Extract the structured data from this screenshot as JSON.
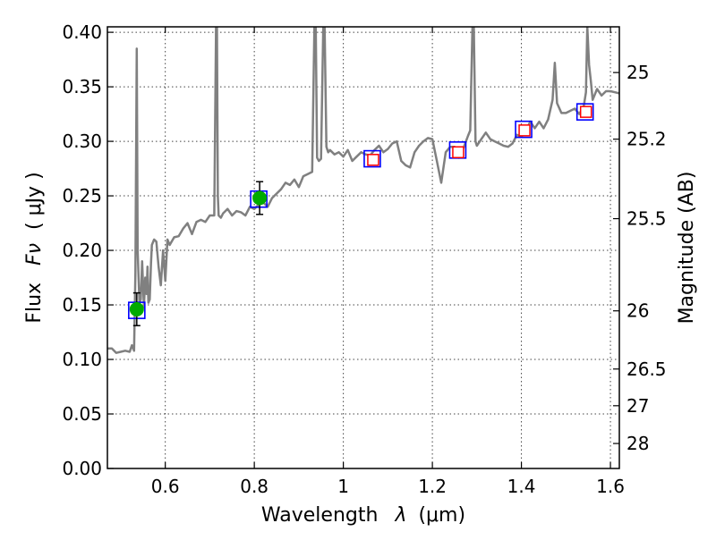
{
  "chart_data": {
    "type": "line",
    "title": "",
    "xlabel": "Wavelength",
    "xlabel_symbol": "λ",
    "xlabel_unit": "(μm)",
    "ylabel": "Flux",
    "ylabel_symbol": "Fν",
    "ylabel_unit": "( μJy )",
    "y2label": "Magnitude (AB)",
    "xlim": [
      0.47,
      1.62
    ],
    "ylim": [
      0.0,
      0.405
    ],
    "grid": true,
    "legend": "none",
    "x_ticks": [
      {
        "value": 0.6,
        "label": "0.6"
      },
      {
        "value": 0.8,
        "label": "0.8"
      },
      {
        "value": 1.0,
        "label": "1"
      },
      {
        "value": 1.2,
        "label": "1.2"
      },
      {
        "value": 1.4,
        "label": "1.4"
      },
      {
        "value": 1.6,
        "label": "1.6"
      }
    ],
    "y_ticks": [
      {
        "value": 0.0,
        "label": "0.00"
      },
      {
        "value": 0.05,
        "label": "0.05"
      },
      {
        "value": 0.1,
        "label": "0.10"
      },
      {
        "value": 0.15,
        "label": "0.15"
      },
      {
        "value": 0.2,
        "label": "0.20"
      },
      {
        "value": 0.25,
        "label": "0.25"
      },
      {
        "value": 0.3,
        "label": "0.30"
      },
      {
        "value": 0.35,
        "label": "0.35"
      },
      {
        "value": 0.4,
        "label": "0.40"
      }
    ],
    "y2_ticks": [
      {
        "mag": 25,
        "label": "25"
      },
      {
        "mag": 25.2,
        "label": "25.2"
      },
      {
        "mag": 25.5,
        "label": "25.5"
      },
      {
        "mag": 26,
        "label": "26"
      },
      {
        "mag": 26.5,
        "label": "26.5"
      },
      {
        "mag": 27,
        "label": "27"
      },
      {
        "mag": 28,
        "label": "28"
      }
    ],
    "series": [
      {
        "kind": "spectrum",
        "color": "#808080",
        "x": [
          0.47,
          0.48,
          0.49,
          0.5,
          0.51,
          0.52,
          0.525,
          0.53,
          0.533,
          0.536,
          0.538,
          0.542,
          0.545,
          0.548,
          0.552,
          0.555,
          0.558,
          0.56,
          0.562,
          0.565,
          0.568,
          0.57,
          0.575,
          0.58,
          0.585,
          0.59,
          0.595,
          0.6,
          0.605,
          0.61,
          0.62,
          0.63,
          0.64,
          0.65,
          0.66,
          0.67,
          0.68,
          0.69,
          0.7,
          0.71,
          0.714,
          0.716,
          0.718,
          0.72,
          0.725,
          0.73,
          0.74,
          0.75,
          0.76,
          0.77,
          0.78,
          0.79,
          0.8,
          0.81,
          0.82,
          0.83,
          0.84,
          0.85,
          0.86,
          0.87,
          0.88,
          0.89,
          0.9,
          0.91,
          0.92,
          0.93,
          0.935,
          0.938,
          0.941,
          0.945,
          0.95,
          0.955,
          0.958,
          0.962,
          0.966,
          0.97,
          0.98,
          0.99,
          1.0,
          1.01,
          1.02,
          1.03,
          1.04,
          1.05,
          1.06,
          1.07,
          1.08,
          1.09,
          1.1,
          1.11,
          1.12,
          1.13,
          1.14,
          1.15,
          1.16,
          1.17,
          1.18,
          1.19,
          1.2,
          1.21,
          1.22,
          1.23,
          1.24,
          1.25,
          1.26,
          1.27,
          1.28,
          1.285,
          1.29,
          1.293,
          1.297,
          1.3,
          1.31,
          1.32,
          1.33,
          1.34,
          1.35,
          1.36,
          1.37,
          1.38,
          1.39,
          1.4,
          1.41,
          1.42,
          1.43,
          1.44,
          1.45,
          1.46,
          1.47,
          1.475,
          1.48,
          1.49,
          1.5,
          1.51,
          1.52,
          1.53,
          1.54,
          1.545,
          1.548,
          1.552,
          1.556,
          1.56,
          1.57,
          1.58,
          1.59,
          1.6,
          1.61,
          1.62
        ],
        "y": [
          0.11,
          0.11,
          0.106,
          0.107,
          0.108,
          0.107,
          0.113,
          0.108,
          0.18,
          0.385,
          0.2,
          0.152,
          0.155,
          0.19,
          0.148,
          0.175,
          0.16,
          0.185,
          0.152,
          0.155,
          0.188,
          0.205,
          0.21,
          0.208,
          0.185,
          0.168,
          0.2,
          0.172,
          0.21,
          0.205,
          0.212,
          0.213,
          0.22,
          0.225,
          0.215,
          0.226,
          0.228,
          0.226,
          0.232,
          0.232,
          0.405,
          0.405,
          0.25,
          0.232,
          0.23,
          0.234,
          0.238,
          0.232,
          0.236,
          0.235,
          0.232,
          0.24,
          0.238,
          0.242,
          0.244,
          0.24,
          0.248,
          0.252,
          0.256,
          0.262,
          0.26,
          0.265,
          0.258,
          0.268,
          0.27,
          0.272,
          0.405,
          0.405,
          0.285,
          0.282,
          0.284,
          0.405,
          0.405,
          0.295,
          0.29,
          0.292,
          0.288,
          0.29,
          0.286,
          0.292,
          0.282,
          0.286,
          0.29,
          0.288,
          0.287,
          0.292,
          0.296,
          0.29,
          0.293,
          0.298,
          0.3,
          0.282,
          0.278,
          0.276,
          0.29,
          0.296,
          0.3,
          0.303,
          0.302,
          0.282,
          0.262,
          0.29,
          0.295,
          0.295,
          0.285,
          0.294,
          0.305,
          0.31,
          0.405,
          0.405,
          0.3,
          0.296,
          0.302,
          0.308,
          0.302,
          0.3,
          0.298,
          0.296,
          0.295,
          0.298,
          0.306,
          0.304,
          0.31,
          0.318,
          0.312,
          0.318,
          0.312,
          0.32,
          0.338,
          0.372,
          0.335,
          0.326,
          0.326,
          0.328,
          0.33,
          0.325,
          0.332,
          0.345,
          0.405,
          0.37,
          0.355,
          0.338,
          0.348,
          0.342,
          0.346,
          0.346,
          0.345,
          0.344
        ]
      },
      {
        "kind": "model-boxes",
        "name": "",
        "edge_color": "#0000ff",
        "x": [
          0.536,
          0.81,
          1.065,
          1.257,
          1.405,
          1.543
        ],
        "y": [
          0.145,
          0.247,
          0.284,
          0.292,
          0.311,
          0.327
        ]
      },
      {
        "kind": "detections",
        "name": "",
        "color": "#00aa00",
        "x": [
          0.536,
          0.812
        ],
        "y": [
          0.146,
          0.248
        ],
        "yerr": [
          0.015,
          0.015
        ]
      },
      {
        "kind": "upper-points",
        "name": "",
        "edge_color": "#ff0000",
        "x": [
          1.067,
          1.258,
          1.407,
          1.545
        ],
        "y": [
          0.283,
          0.29,
          0.31,
          0.327
        ]
      }
    ]
  }
}
